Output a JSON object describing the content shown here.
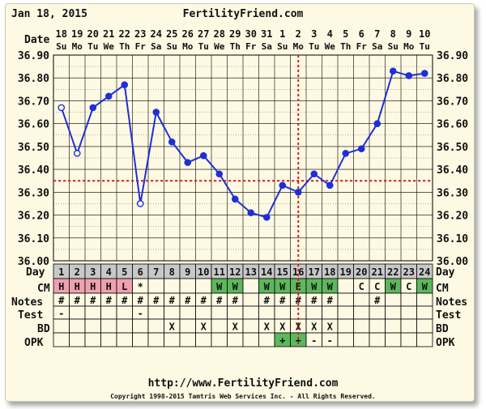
{
  "header": {
    "date": "Jan 18, 2015",
    "site": "FertilityFriend.com"
  },
  "footer": {
    "url": "http://www.FertilityFriend.com",
    "copyright": "Copyright 1998-2015 Tamtris Web Services Inc. - All Rights Reserved."
  },
  "row_labels": {
    "date": "Date",
    "day": "Day",
    "cm": "CM",
    "notes": "Notes",
    "test": "Test",
    "bd": "BD",
    "opk": "OPK"
  },
  "colors": {
    "line": "#1f2fd8",
    "coverline": "#d42020",
    "ovulation_line": "#d42020",
    "grid": "#000000",
    "background": "#fdf9e3",
    "day_row": "#c8c8c8",
    "menses": "#f0a0b0",
    "fertile": "#5cb85c"
  },
  "chart_data": {
    "type": "line",
    "title": "",
    "xlabel": "Day",
    "ylabel": "",
    "ylim": [
      36.0,
      36.9
    ],
    "yticks": [
      "36.00",
      "36.10",
      "36.20",
      "36.30",
      "36.40",
      "36.50",
      "36.60",
      "36.70",
      "36.80",
      "36.90"
    ],
    "coverline": 36.35,
    "ovulation_day": 16,
    "grid": true,
    "days": [
      1,
      2,
      3,
      4,
      5,
      6,
      7,
      8,
      9,
      10,
      11,
      12,
      13,
      14,
      15,
      16,
      17,
      18,
      19,
      20,
      21,
      22,
      23,
      24
    ],
    "dates": [
      "18",
      "19",
      "20",
      "21",
      "22",
      "23",
      "24",
      "25",
      "26",
      "27",
      "28",
      "29",
      "30",
      "31",
      "1",
      "2",
      "3",
      "4",
      "5",
      "6",
      "7",
      "8",
      "9",
      "10"
    ],
    "weekdays": [
      "Su",
      "Mo",
      "Tu",
      "We",
      "Th",
      "Fr",
      "Sa",
      "Su",
      "Mo",
      "Tu",
      "We",
      "Th",
      "Fr",
      "Sa",
      "Su",
      "Mo",
      "Tu",
      "We",
      "Th",
      "Fr",
      "Sa",
      "Su",
      "Mo",
      "Tu"
    ],
    "series": [
      {
        "values": [
          36.67,
          36.47,
          36.67,
          36.72,
          36.77,
          36.25,
          36.65,
          36.52,
          36.43,
          36.46,
          36.38,
          36.27,
          36.21,
          36.19,
          36.33,
          36.3,
          36.38,
          36.33,
          36.47,
          36.49,
          36.6,
          36.83,
          36.81,
          36.82
        ],
        "open_markers": [
          1,
          2,
          6
        ]
      }
    ],
    "cm": [
      "H",
      "H",
      "H",
      "H",
      "L",
      "*",
      "",
      "",
      "",
      "",
      "W",
      "W",
      "",
      "W",
      "W",
      "E",
      "W",
      "W",
      "",
      "C",
      "C",
      "W",
      "C",
      "W"
    ],
    "cm_style": [
      "m",
      "m",
      "m",
      "m",
      "m",
      "",
      "",
      "",
      "",
      "",
      "g",
      "g",
      "",
      "g",
      "g",
      "g",
      "g",
      "g",
      "",
      "",
      "",
      "g",
      "",
      "g"
    ],
    "notes": [
      "#",
      "#",
      "#",
      "#",
      "#",
      "#",
      "#",
      "#",
      "#",
      "#",
      "#",
      "#",
      "",
      "#",
      "#",
      "#",
      "#",
      "#",
      "",
      "",
      "#",
      "",
      "",
      ""
    ],
    "test": [
      "-",
      "",
      "",
      "",
      "",
      "-",
      "",
      "",
      "",
      "",
      "",
      "",
      "",
      "",
      "",
      "",
      "",
      "",
      "",
      "",
      "",
      "",
      "",
      ""
    ],
    "bd": [
      "",
      "",
      "",
      "",
      "",
      "",
      "",
      "X",
      "",
      "X",
      "",
      "X",
      "",
      "X",
      "X",
      "X",
      "X",
      "X",
      "",
      "",
      "",
      "",
      "",
      ""
    ],
    "opk": [
      "",
      "",
      "",
      "",
      "",
      "",
      "",
      "",
      "",
      "",
      "",
      "",
      "",
      "",
      "+",
      "+",
      "-",
      "-",
      "",
      "",
      "",
      "",
      "",
      ""
    ],
    "opk_style": [
      "",
      "",
      "",
      "",
      "",
      "",
      "",
      "",
      "",
      "",
      "",
      "",
      "",
      "",
      "g",
      "g",
      "",
      "",
      "",
      "",
      "",
      "",
      "",
      ""
    ]
  }
}
